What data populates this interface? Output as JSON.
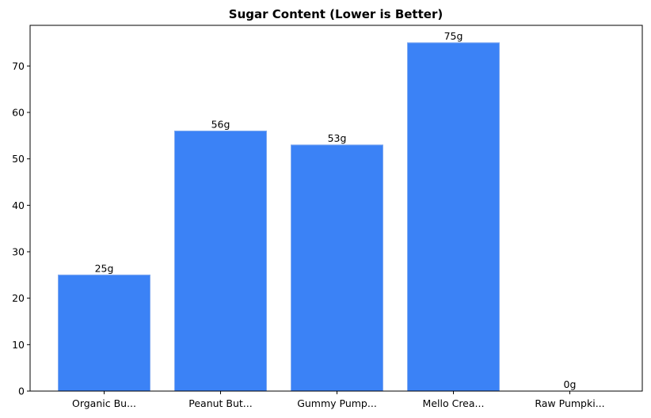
{
  "chart_data": {
    "type": "bar",
    "title": "Sugar Content (Lower is Better)",
    "xlabel": "",
    "ylabel": "",
    "categories": [
      "Organic Bu...",
      "Peanut But...",
      "Gummy Pump...",
      "Mello Crea...",
      "Raw Pumpki..."
    ],
    "values": [
      25,
      56,
      53,
      75,
      0
    ],
    "data_labels": [
      "25g",
      "56g",
      "53g",
      "75g",
      "0g"
    ],
    "ylim": [
      0,
      78.75
    ],
    "yticks": [
      0,
      10,
      20,
      30,
      40,
      50,
      60,
      70
    ],
    "grid": false,
    "legend": "none",
    "bar_color": "#3b82f6",
    "bar_edge_color": "#7fa9f0"
  }
}
